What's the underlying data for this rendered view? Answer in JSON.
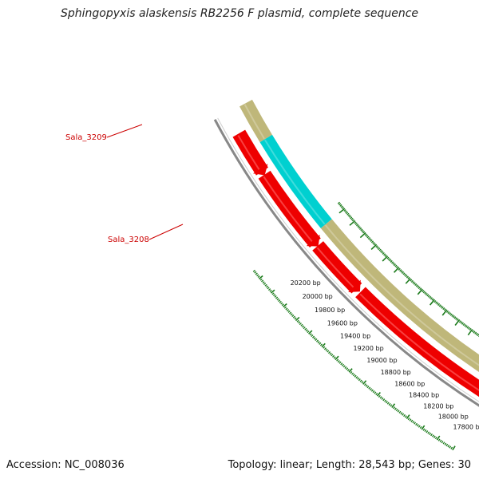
{
  "title": "Sphingopyxis alaskensis RB2256 F plasmid, complete sequence",
  "accession": "Accession: NC_008036",
  "summary": "Topology: linear; Length: 28,543 bp; Genes: 30",
  "colors": {
    "backbone": "#888888",
    "forward_gene": "#ee0000",
    "reverse_gene": "#bfb77a",
    "highlight_gene": "#00d0d0",
    "tick": "#1a7a1a",
    "label": "#cc0000"
  },
  "ticks": [
    {
      "bp": 20200,
      "label": "20200 bp"
    },
    {
      "bp": 20000,
      "label": "20000 bp"
    },
    {
      "bp": 19800,
      "label": "19800 bp"
    },
    {
      "bp": 19600,
      "label": "19600 bp"
    },
    {
      "bp": 19400,
      "label": "19400 bp"
    },
    {
      "bp": 19200,
      "label": "19200 bp"
    },
    {
      "bp": 19000,
      "label": "19000 bp"
    },
    {
      "bp": 18800,
      "label": "18800 bp"
    },
    {
      "bp": 18600,
      "label": "18600 bp"
    },
    {
      "bp": 18400,
      "label": "18400 bp"
    },
    {
      "bp": 18200,
      "label": "18200 bp"
    },
    {
      "bp": 18000,
      "label": "18000 bp"
    },
    {
      "bp": 17800,
      "label": "17800 bp"
    }
  ],
  "genes": [
    {
      "name": "Sala_3209",
      "strand": "reverse",
      "highlight": true
    },
    {
      "name": "Sala_3208",
      "strand": "reverse",
      "highlight": false
    }
  ]
}
